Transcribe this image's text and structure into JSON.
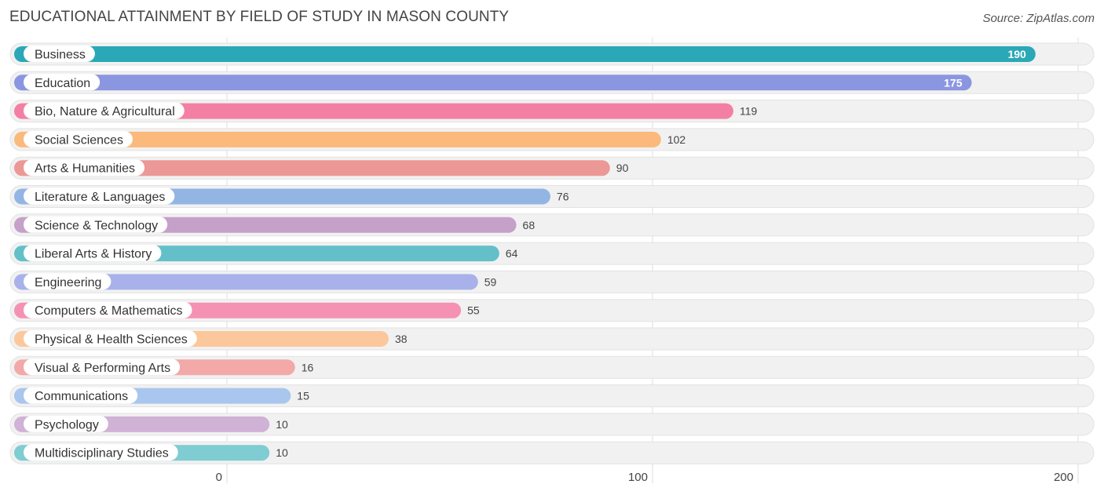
{
  "header": {
    "title": "EDUCATIONAL ATTAINMENT BY FIELD OF STUDY IN MASON COUNTY",
    "source": "Source: ZipAtlas.com"
  },
  "chart_data": {
    "type": "bar",
    "orientation": "horizontal",
    "title": "EDUCATIONAL ATTAINMENT BY FIELD OF STUDY IN MASON COUNTY",
    "xlabel": "",
    "ylabel": "",
    "xlim": [
      0,
      200
    ],
    "ticks": [
      "0",
      "100",
      "200"
    ],
    "grid": true,
    "categories": [
      "Business",
      "Education",
      "Bio, Nature & Agricultural",
      "Social Sciences",
      "Arts & Humanities",
      "Literature & Languages",
      "Science & Technology",
      "Liberal Arts & History",
      "Engineering",
      "Computers & Mathematics",
      "Physical & Health Sciences",
      "Visual & Performing Arts",
      "Communications",
      "Psychology",
      "Multidisciplinary Studies"
    ],
    "values": [
      190,
      175,
      119,
      102,
      90,
      76,
      68,
      64,
      59,
      55,
      38,
      16,
      15,
      10,
      10
    ],
    "value_labels": [
      "190",
      "175",
      "119",
      "102",
      "90",
      "76",
      "68",
      "64",
      "59",
      "55",
      "38",
      "16",
      "15",
      "10",
      "10"
    ],
    "colors": [
      "#2aa8b8",
      "#8b96e0",
      "#f47fa4",
      "#fbb97c",
      "#ec9896",
      "#92b5e4",
      "#c5a0c9",
      "#64c0c8",
      "#a9b1ea",
      "#f592b4",
      "#fcc79a",
      "#f2a9a8",
      "#a9c6ee",
      "#cfb2d6",
      "#7fccd2"
    ]
  }
}
